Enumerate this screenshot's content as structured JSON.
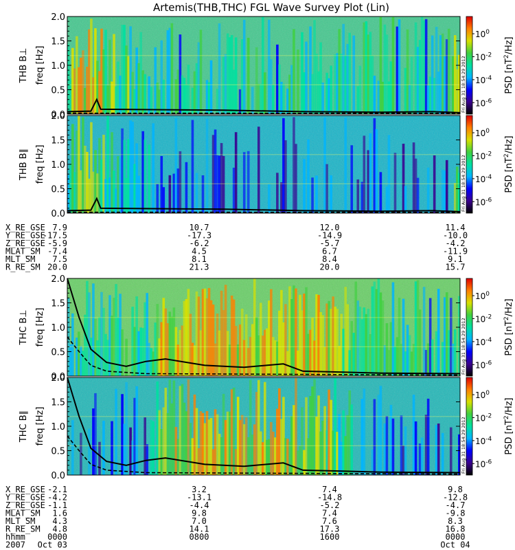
{
  "chart_data": {
    "type": "heatmap",
    "title": "Artemis(THB,THC) FGL Wave Survey Plot (Lin)",
    "colorbar": {
      "label": "PSD [nT²/Hz]",
      "label_base": "PSD [nT",
      "label_sup": "2",
      "label_end": "/Hz]",
      "tick_base": "10",
      "tick_exponents": [
        "0",
        "-2",
        "-4",
        "-6"
      ],
      "decades": [
        0,
        -2,
        -4,
        -6
      ],
      "range_log10": [
        -7,
        1.5
      ],
      "colormap": [
        "#000000",
        "#3a008f",
        "#0000ff",
        "#00b4ff",
        "#00e0a0",
        "#40d040",
        "#d8e000",
        "#ff8000",
        "#e00000"
      ]
    },
    "timestamp": "Fri Aug 31 18:54:29 2012",
    "panel_groups": [
      {
        "panels": [
          {
            "probe": "THB",
            "component_label": "B⊥",
            "ylabel": "freq [Hz]",
            "ylim": [
              0,
              2.0
            ],
            "yticks": [
              "0.0",
              "0.5",
              "1.0",
              "1.5",
              "2.0"
            ],
            "background": "#48c890",
            "intensity_profile": [
              [
                0.0,
                0.55
              ],
              [
                0.03,
                0.95
              ],
              [
                0.12,
                0.65
              ],
              [
                0.25,
                0.5
              ],
              [
                0.97,
                0.5
              ],
              [
                0.985,
                0.85
              ],
              [
                1.0,
                0.5
              ]
            ],
            "line_solid": [
              [
                0.0,
                0.05
              ],
              [
                0.06,
                0.06
              ],
              [
                0.075,
                0.3
              ],
              [
                0.085,
                0.1
              ],
              [
                0.4,
                0.08
              ],
              [
                0.6,
                0.05
              ],
              [
                0.8,
                0.04
              ],
              [
                0.93,
                0.05
              ],
              [
                1.0,
                0.03
              ]
            ],
            "line_dashed": [
              [
                0.0,
                0.02
              ],
              [
                1.0,
                0.015
              ]
            ]
          },
          {
            "probe": "THB",
            "component_label": "B∥",
            "ylabel": "freq [Hz]",
            "ylim": [
              0,
              2.0
            ],
            "yticks": [
              "0.0",
              "0.5",
              "1.0",
              "1.5",
              "2.0"
            ],
            "background": "#1fb5c8",
            "intensity_profile": [
              [
                0.0,
                0.35
              ],
              [
                0.03,
                0.85
              ],
              [
                0.12,
                0.5
              ],
              [
                0.25,
                0.3
              ],
              [
                0.97,
                0.3
              ],
              [
                0.985,
                0.7
              ],
              [
                1.0,
                0.3
              ]
            ],
            "line_solid": [
              [
                0.0,
                0.05
              ],
              [
                0.06,
                0.06
              ],
              [
                0.075,
                0.3
              ],
              [
                0.085,
                0.1
              ],
              [
                0.4,
                0.08
              ],
              [
                0.6,
                0.05
              ],
              [
                0.8,
                0.04
              ],
              [
                0.93,
                0.05
              ],
              [
                1.0,
                0.03
              ]
            ],
            "line_dashed": [
              [
                0.0,
                0.02
              ],
              [
                1.0,
                0.015
              ]
            ]
          }
        ],
        "ephemeris": {
          "rows": [
            {
              "label": "X_RE_GSE",
              "values": [
                "7.9",
                "10.7",
                "12.0",
                "11.4"
              ]
            },
            {
              "label": "Y_RE_GSE",
              "values": [
                "-17.5",
                "-17.3",
                "-14.9",
                "-10.0"
              ]
            },
            {
              "label": "Z_RE_GSE",
              "values": [
                "-5.9",
                "-6.2",
                "-5.7",
                "-4.2"
              ]
            },
            {
              "label": "MLAT_SM",
              "values": [
                "-7.4",
                "4.5",
                "6.7",
                "-11.9"
              ]
            },
            {
              "label": "MLT_SM",
              "values": [
                "7.5",
                "8.1",
                "8.4",
                "9.1"
              ]
            },
            {
              "label": "R_RE_SM",
              "values": [
                "20.0",
                "21.3",
                "20.0",
                "15.7"
              ]
            }
          ]
        }
      },
      {
        "panels": [
          {
            "probe": "THC",
            "component_label": "B⊥",
            "ylabel": "freq [Hz]",
            "ylim": [
              0,
              2.0
            ],
            "yticks": [
              "0.0",
              "0.5",
              "1.0",
              "1.5",
              "2.0"
            ],
            "background": "#6ccf6a",
            "intensity_profile": [
              [
                0.0,
                0.55
              ],
              [
                0.2,
                0.55
              ],
              [
                0.24,
                0.85
              ],
              [
                0.38,
                0.9
              ],
              [
                0.55,
                0.85
              ],
              [
                0.68,
                0.8
              ],
              [
                0.75,
                0.55
              ],
              [
                1.0,
                0.5
              ]
            ],
            "line_solid": [
              [
                0.0,
                2.0
              ],
              [
                0.03,
                1.2
              ],
              [
                0.06,
                0.55
              ],
              [
                0.1,
                0.28
              ],
              [
                0.15,
                0.2
              ],
              [
                0.2,
                0.3
              ],
              [
                0.25,
                0.35
              ],
              [
                0.35,
                0.22
              ],
              [
                0.45,
                0.18
              ],
              [
                0.55,
                0.25
              ],
              [
                0.6,
                0.1
              ],
              [
                0.7,
                0.08
              ],
              [
                0.8,
                0.06
              ],
              [
                1.0,
                0.05
              ]
            ],
            "line_dashed": [
              [
                0.0,
                0.8
              ],
              [
                0.03,
                0.5
              ],
              [
                0.06,
                0.22
              ],
              [
                0.1,
                0.1
              ],
              [
                0.2,
                0.05
              ],
              [
                1.0,
                0.02
              ]
            ]
          },
          {
            "probe": "THC",
            "component_label": "B∥",
            "ylabel": "freq [Hz]",
            "ylim": [
              0,
              2.0
            ],
            "yticks": [
              "0.0",
              "0.5",
              "1.0",
              "1.5",
              "2.0"
            ],
            "background": "#28b8b8",
            "intensity_profile": [
              [
                0.0,
                0.3
              ],
              [
                0.2,
                0.35
              ],
              [
                0.24,
                0.8
              ],
              [
                0.38,
                0.85
              ],
              [
                0.55,
                0.8
              ],
              [
                0.68,
                0.7
              ],
              [
                0.75,
                0.35
              ],
              [
                1.0,
                0.3
              ]
            ],
            "line_solid": [
              [
                0.0,
                2.0
              ],
              [
                0.03,
                1.2
              ],
              [
                0.06,
                0.55
              ],
              [
                0.1,
                0.28
              ],
              [
                0.15,
                0.2
              ],
              [
                0.2,
                0.3
              ],
              [
                0.25,
                0.35
              ],
              [
                0.35,
                0.22
              ],
              [
                0.45,
                0.18
              ],
              [
                0.55,
                0.25
              ],
              [
                0.6,
                0.1
              ],
              [
                0.7,
                0.08
              ],
              [
                0.8,
                0.06
              ],
              [
                1.0,
                0.05
              ]
            ],
            "line_dashed": [
              [
                0.0,
                0.8
              ],
              [
                0.03,
                0.5
              ],
              [
                0.06,
                0.22
              ],
              [
                0.1,
                0.1
              ],
              [
                0.2,
                0.05
              ],
              [
                1.0,
                0.02
              ]
            ]
          }
        ],
        "ephemeris": {
          "rows": [
            {
              "label": "X_RE_GSE",
              "values": [
                "-2.1",
                "3.2",
                "7.4",
                "9.8"
              ]
            },
            {
              "label": "Y_RE_GSE",
              "values": [
                "-4.2",
                "-13.1",
                "-14.8",
                "-12.8"
              ]
            },
            {
              "label": "Z_RE_GSE",
              "values": [
                "-1.1",
                "-4.4",
                "-5.2",
                "-4.7"
              ]
            },
            {
              "label": "MLAT_SM",
              "values": [
                "1.6",
                "9.8",
                "7.4",
                "-9.8"
              ]
            },
            {
              "label": "MLT_SM",
              "values": [
                "4.3",
                "7.0",
                "7.6",
                "8.3"
              ]
            },
            {
              "label": "R_RE_SM",
              "values": [
                "4.8",
                "14.1",
                "17.3",
                "16.8"
              ]
            },
            {
              "label": "hhmm",
              "values": [
                "0000",
                "0800",
                "1600",
                "0000"
              ]
            },
            {
              "label": "2007",
              "values": [
                "Oct 03",
                "",
                "",
                "Oct 04"
              ]
            }
          ]
        }
      }
    ]
  }
}
